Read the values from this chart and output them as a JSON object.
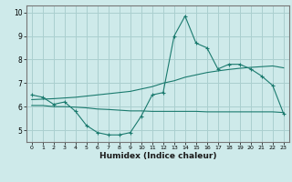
{
  "xlabel": "Humidex (Indice chaleur)",
  "bg_color": "#ceeaea",
  "line_color": "#1a7a6e",
  "grid_color": "#aacfcf",
  "x_ticks": [
    0,
    1,
    2,
    3,
    4,
    5,
    6,
    7,
    8,
    9,
    10,
    11,
    12,
    13,
    14,
    15,
    16,
    17,
    18,
    19,
    20,
    21,
    22,
    23
  ],
  "y_ticks": [
    5,
    6,
    7,
    8,
    9,
    10
  ],
  "xlim": [
    -0.5,
    23.5
  ],
  "ylim": [
    4.5,
    10.3
  ],
  "curve1_x": [
    0,
    1,
    2,
    3,
    4,
    5,
    6,
    7,
    8,
    9,
    10,
    11,
    12,
    13,
    14,
    15,
    16,
    17,
    18,
    19,
    20,
    21,
    22,
    23
  ],
  "curve1_y": [
    6.5,
    6.4,
    6.1,
    6.2,
    5.8,
    5.2,
    4.9,
    4.8,
    4.8,
    4.9,
    5.6,
    6.5,
    6.6,
    9.0,
    9.85,
    8.7,
    8.5,
    7.6,
    7.8,
    7.8,
    7.6,
    7.3,
    6.9,
    5.7
  ],
  "curve2_x": [
    0,
    1,
    2,
    3,
    4,
    5,
    6,
    7,
    8,
    9,
    10,
    11,
    12,
    13,
    14,
    15,
    16,
    17,
    18,
    19,
    20,
    21,
    22,
    23
  ],
  "curve2_y": [
    6.3,
    6.32,
    6.34,
    6.37,
    6.4,
    6.45,
    6.5,
    6.55,
    6.6,
    6.65,
    6.75,
    6.85,
    7.0,
    7.1,
    7.25,
    7.35,
    7.45,
    7.52,
    7.58,
    7.63,
    7.67,
    7.7,
    7.73,
    7.65
  ],
  "curve3_x": [
    0,
    1,
    2,
    3,
    4,
    5,
    6,
    7,
    8,
    9,
    10,
    11,
    12,
    13,
    14,
    15,
    16,
    17,
    18,
    19,
    20,
    21,
    22,
    23
  ],
  "curve3_y": [
    6.05,
    6.05,
    6.0,
    6.0,
    5.98,
    5.95,
    5.9,
    5.88,
    5.85,
    5.82,
    5.82,
    5.8,
    5.8,
    5.8,
    5.8,
    5.8,
    5.78,
    5.78,
    5.78,
    5.78,
    5.78,
    5.78,
    5.78,
    5.75
  ]
}
